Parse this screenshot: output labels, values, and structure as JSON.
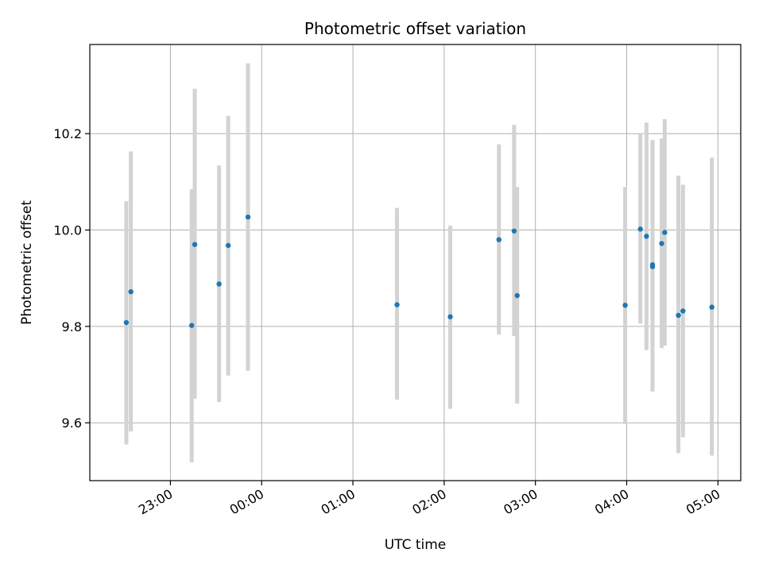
{
  "chart_data": {
    "type": "scatter",
    "title": "Photometric offset variation",
    "xlabel": "UTC time",
    "ylabel": "Photometric offset",
    "x_axis_kind": "time",
    "x_range": [
      "22:07",
      "05:15"
    ],
    "x_ticks": [
      "23:00",
      "00:00",
      "01:00",
      "02:00",
      "03:00",
      "04:00",
      "05:00"
    ],
    "ylim": [
      9.48,
      10.385
    ],
    "y_ticks": [
      "9.6",
      "9.8",
      "10.0",
      "10.2"
    ],
    "grid": true,
    "colors": {
      "points": "#1f77b4",
      "errorbars": "#d3d3d3",
      "grid": "#b0b0b0"
    },
    "points": [
      {
        "time": "22:31",
        "y": 9.808,
        "low": 9.555,
        "high": 10.06
      },
      {
        "time": "22:34",
        "y": 9.872,
        "low": 9.582,
        "high": 10.163
      },
      {
        "time": "23:14",
        "y": 9.802,
        "low": 9.518,
        "high": 10.085
      },
      {
        "time": "23:16",
        "y": 9.97,
        "low": 9.65,
        "high": 10.293
      },
      {
        "time": "23:32",
        "y": 9.888,
        "low": 9.643,
        "high": 10.134
      },
      {
        "time": "23:38",
        "y": 9.968,
        "low": 9.698,
        "high": 10.237
      },
      {
        "time": "23:51",
        "y": 10.027,
        "low": 9.708,
        "high": 10.346
      },
      {
        "time": "01:29",
        "y": 9.845,
        "low": 9.648,
        "high": 10.046
      },
      {
        "time": "02:04",
        "y": 9.82,
        "low": 9.629,
        "high": 10.009
      },
      {
        "time": "02:36",
        "y": 9.98,
        "low": 9.783,
        "high": 10.178
      },
      {
        "time": "02:46",
        "y": 9.998,
        "low": 9.78,
        "high": 10.218
      },
      {
        "time": "02:48",
        "y": 9.864,
        "low": 9.64,
        "high": 10.089
      },
      {
        "time": "03:59",
        "y": 9.844,
        "low": 9.597,
        "high": 10.089
      },
      {
        "time": "04:09",
        "y": 10.002,
        "low": 9.806,
        "high": 10.2
      },
      {
        "time": "04:13",
        "y": 9.987,
        "low": 9.751,
        "high": 10.223
      },
      {
        "time": "04:17",
        "y": 9.928,
        "low": 9.667,
        "high": 10.187
      },
      {
        "time": "04:17",
        "y": 9.924,
        "low": 9.665,
        "high": 10.185
      },
      {
        "time": "04:23",
        "y": 9.972,
        "low": 9.755,
        "high": 10.19
      },
      {
        "time": "04:25",
        "y": 9.995,
        "low": 9.76,
        "high": 10.23
      },
      {
        "time": "04:34",
        "y": 9.823,
        "low": 9.537,
        "high": 10.113
      },
      {
        "time": "04:37",
        "y": 9.832,
        "low": 9.57,
        "high": 10.094
      },
      {
        "time": "04:56",
        "y": 9.84,
        "low": 9.532,
        "high": 10.15
      }
    ]
  }
}
